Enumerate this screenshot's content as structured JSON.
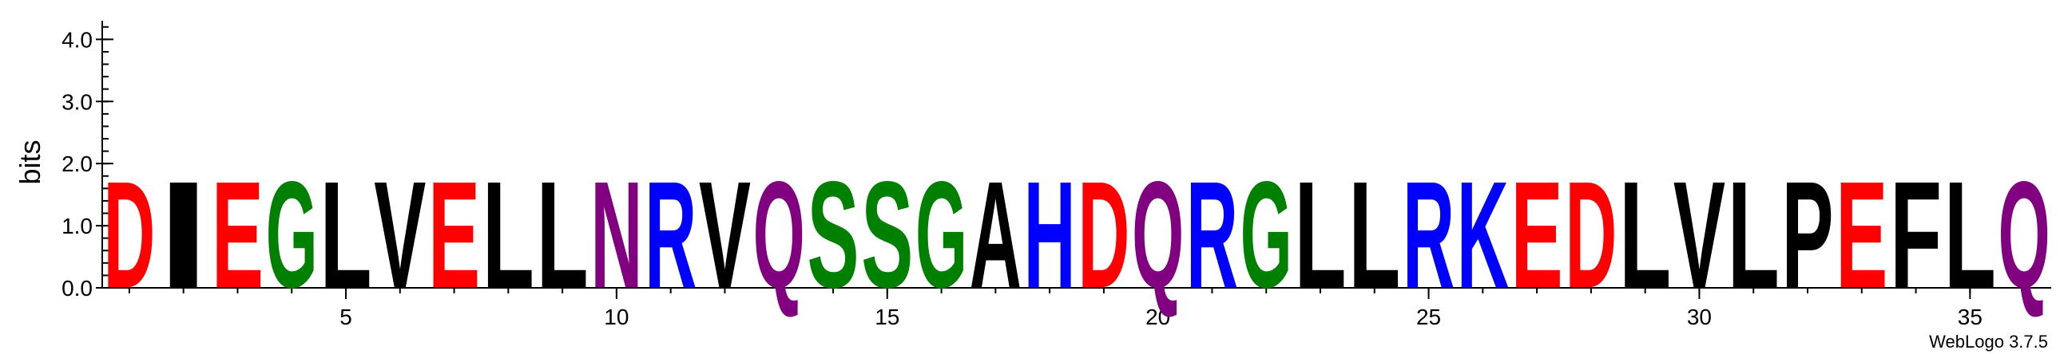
{
  "chart_data": {
    "type": "sequence-logo",
    "ylabel": "bits",
    "ylim": [
      0,
      4.3
    ],
    "yticks": [
      {
        "value": 0.0,
        "label": "0.0"
      },
      {
        "value": 1.0,
        "label": "1.0"
      },
      {
        "value": 2.0,
        "label": "2.0"
      },
      {
        "value": 3.0,
        "label": "3.0"
      },
      {
        "value": 4.0,
        "label": "4.0"
      }
    ],
    "xlim": [
      0.5,
      36.5
    ],
    "xticks": [
      {
        "value": 5,
        "label": "5"
      },
      {
        "value": 10,
        "label": "10"
      },
      {
        "value": 15,
        "label": "15"
      },
      {
        "value": 20,
        "label": "20"
      },
      {
        "value": 25,
        "label": "25"
      },
      {
        "value": 30,
        "label": "30"
      },
      {
        "value": 35,
        "label": "35"
      }
    ],
    "positions": [
      {
        "pos": 1,
        "letter": "D",
        "bits": 1.75
      },
      {
        "pos": 2,
        "letter": "I",
        "bits": 1.75
      },
      {
        "pos": 3,
        "letter": "E",
        "bits": 1.75
      },
      {
        "pos": 4,
        "letter": "G",
        "bits": 1.75
      },
      {
        "pos": 5,
        "letter": "L",
        "bits": 1.75
      },
      {
        "pos": 6,
        "letter": "V",
        "bits": 1.75
      },
      {
        "pos": 7,
        "letter": "E",
        "bits": 1.75
      },
      {
        "pos": 8,
        "letter": "L",
        "bits": 1.75
      },
      {
        "pos": 9,
        "letter": "L",
        "bits": 1.75
      },
      {
        "pos": 10,
        "letter": "N",
        "bits": 1.75
      },
      {
        "pos": 11,
        "letter": "R",
        "bits": 1.75
      },
      {
        "pos": 12,
        "letter": "V",
        "bits": 1.75
      },
      {
        "pos": 13,
        "letter": "Q",
        "bits": 1.75
      },
      {
        "pos": 14,
        "letter": "S",
        "bits": 1.75
      },
      {
        "pos": 15,
        "letter": "S",
        "bits": 1.75
      },
      {
        "pos": 16,
        "letter": "G",
        "bits": 1.75
      },
      {
        "pos": 17,
        "letter": "A",
        "bits": 1.75
      },
      {
        "pos": 18,
        "letter": "H",
        "bits": 1.75
      },
      {
        "pos": 19,
        "letter": "D",
        "bits": 1.75
      },
      {
        "pos": 20,
        "letter": "Q",
        "bits": 1.75
      },
      {
        "pos": 21,
        "letter": "R",
        "bits": 1.75
      },
      {
        "pos": 22,
        "letter": "G",
        "bits": 1.75
      },
      {
        "pos": 23,
        "letter": "L",
        "bits": 1.75
      },
      {
        "pos": 24,
        "letter": "L",
        "bits": 1.75
      },
      {
        "pos": 25,
        "letter": "R",
        "bits": 1.75
      },
      {
        "pos": 26,
        "letter": "K",
        "bits": 1.75
      },
      {
        "pos": 27,
        "letter": "E",
        "bits": 1.75
      },
      {
        "pos": 28,
        "letter": "D",
        "bits": 1.75
      },
      {
        "pos": 29,
        "letter": "L",
        "bits": 1.75
      },
      {
        "pos": 30,
        "letter": "V",
        "bits": 1.75
      },
      {
        "pos": 31,
        "letter": "L",
        "bits": 1.75
      },
      {
        "pos": 32,
        "letter": "P",
        "bits": 1.75
      },
      {
        "pos": 33,
        "letter": "E",
        "bits": 1.75
      },
      {
        "pos": 34,
        "letter": "F",
        "bits": 1.75
      },
      {
        "pos": 35,
        "letter": "L",
        "bits": 1.75
      },
      {
        "pos": 36,
        "letter": "Q",
        "bits": 1.75
      }
    ],
    "color_scheme": {
      "D": "#ff0000",
      "E": "#ff0000",
      "K": "#0000ff",
      "R": "#0000ff",
      "H": "#0000ff",
      "N": "#800080",
      "Q": "#800080",
      "S": "#008000",
      "G": "#008000",
      "T": "#008000",
      "Y": "#008000",
      "C": "#008000",
      "A": "#000000",
      "I": "#000000",
      "L": "#000000",
      "V": "#000000",
      "P": "#000000",
      "F": "#000000",
      "M": "#000000",
      "W": "#000000"
    },
    "footer": "WebLogo 3.7.5"
  }
}
